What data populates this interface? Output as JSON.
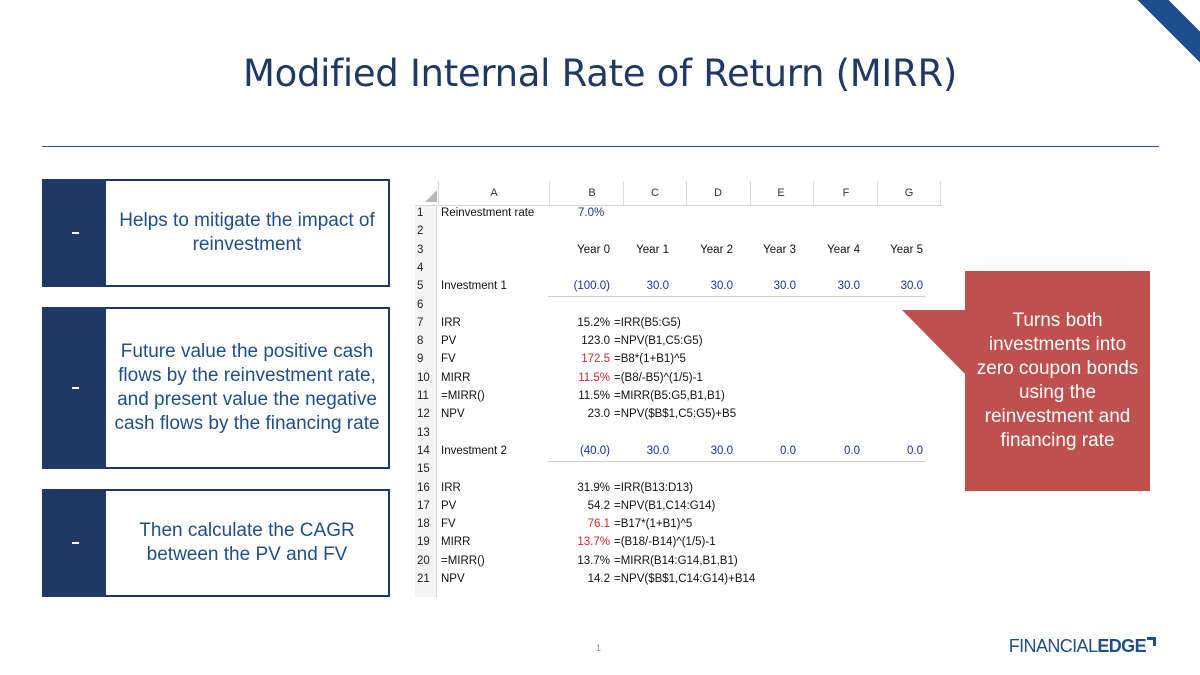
{
  "title": "Modified Internal Rate of Return (MIRR)",
  "points": [
    {
      "text": "Helps to mitigate the impact of reinvestment"
    },
    {
      "text": "Future value the positive cash flows by the reinvestment rate, and present value the negative cash flows by the financing rate"
    },
    {
      "text": "Then calculate the CAGR between the PV and FV"
    }
  ],
  "spreadsheet": {
    "columns": [
      "A",
      "B",
      "C",
      "D",
      "E",
      "F",
      "G"
    ],
    "row_numbers": [
      "1",
      "2",
      "3",
      "4",
      "5",
      "6",
      "7",
      "8",
      "9",
      "10",
      "11",
      "12",
      "13",
      "14",
      "15",
      "16",
      "17",
      "18",
      "19",
      "20",
      "21"
    ],
    "reinvestment_label": "Reinvestment rate",
    "reinvestment_rate": "7.0%",
    "years": [
      "Year 0",
      "Year 1",
      "Year 2",
      "Year 3",
      "Year 4",
      "Year 5"
    ],
    "investment1": {
      "label": "Investment 1",
      "flows": [
        "(100.0)",
        "30.0",
        "30.0",
        "30.0",
        "30.0",
        "30.0"
      ],
      "metrics": [
        {
          "label": "IRR",
          "value": "15.2%",
          "formula": "=IRR(B5:G5)"
        },
        {
          "label": "PV",
          "value": "123.0",
          "formula": "=NPV(B1,C5:G5)"
        },
        {
          "label": "FV",
          "value": "172.5",
          "formula": "=B8*(1+B1)^5"
        },
        {
          "label": "MIRR",
          "value": "11.5%",
          "formula": "=(B8/-B5)^(1/5)-1"
        },
        {
          "label": "=MIRR()",
          "value": "11.5%",
          "formula": "=MIRR(B5:G5,B1,B1)"
        },
        {
          "label": "NPV",
          "value": "23.0",
          "formula": "=NPV($B$1,C5:G5)+B5"
        }
      ]
    },
    "investment2": {
      "label": "Investment 2",
      "flows": [
        "(40.0)",
        "30.0",
        "30.0",
        "0.0",
        "0.0",
        "0.0"
      ],
      "metrics": [
        {
          "label": "IRR",
          "value": "31.9%",
          "formula": "=IRR(B13:D13)"
        },
        {
          "label": "PV",
          "value": "54.2",
          "formula": "=NPV(B1,C14:G14)"
        },
        {
          "label": "FV",
          "value": "76.1",
          "formula": "=B17*(1+B1)^5"
        },
        {
          "label": "MIRR",
          "value": "13.7%",
          "formula": "=(B18/-B14)^(1/5)-1"
        },
        {
          "label": "=MIRR()",
          "value": "13.7%",
          "formula": "=MIRR(B14:G14,B1,B1)"
        },
        {
          "label": "NPV",
          "value": "14.2",
          "formula": "=NPV($B$1,C14:G14)+B14"
        }
      ]
    }
  },
  "callout": "Turns both investments into zero coupon bonds using the reinvestment and financing rate",
  "page_number": "1",
  "logo": {
    "part1": "FINANCIAL",
    "part2": "EDGE"
  },
  "colors": {
    "navy": "#1f3864",
    "callout_red": "#c0504d",
    "input_blue": "#1a2fa8",
    "highlight_red": "#d22b2b"
  }
}
